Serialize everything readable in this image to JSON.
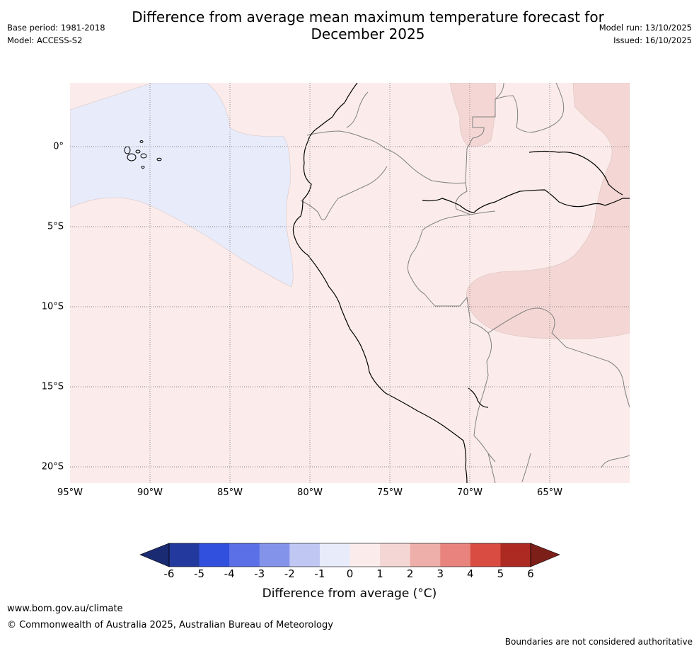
{
  "header": {
    "title_line1": "Difference from average mean maximum temperature forecast for",
    "title_line2": "December 2025",
    "base_period": "Base period: 1981-2018",
    "model": "Model: ACCESS-S2",
    "model_run": "Model run: 13/10/2025",
    "issued": "Issued: 16/10/2025"
  },
  "map": {
    "x_ticks": [
      "95°W",
      "90°W",
      "85°W",
      "80°W",
      "75°W",
      "70°W",
      "65°W"
    ],
    "y_ticks": [
      "0°",
      "5°S",
      "10°S",
      "15°S",
      "20°S"
    ],
    "lon_range": [
      -95,
      -60
    ],
    "lat_range": [
      -21,
      4
    ],
    "regions": [
      {
        "name": "cool-anomaly-pacific",
        "anomaly_range": [
          -1,
          0
        ],
        "color": "#e8ebfa"
      },
      {
        "name": "background",
        "anomaly_range": [
          0,
          1
        ],
        "color": "#fbeceb"
      },
      {
        "name": "warm-anomaly-amazon",
        "anomaly_range": [
          1,
          2
        ],
        "color": "#f4d7d4"
      }
    ]
  },
  "colorbar": {
    "labels": [
      "-6",
      "-5",
      "-4",
      "-3",
      "-2",
      "-1",
      "0",
      "1",
      "2",
      "3",
      "4",
      "5",
      "6"
    ],
    "colors": [
      "#23399d",
      "#3150de",
      "#5b70e6",
      "#8493ea",
      "#c0c7f3",
      "#e8ebfa",
      "#fbeceb",
      "#f4d7d4",
      "#eeaea9",
      "#e8847d",
      "#d94c41",
      "#ad2a22"
    ],
    "under_color": "#1b2b73",
    "over_color": "#7d1f19",
    "title": "Difference from average (°C)"
  },
  "footer": {
    "url": "www.bom.gov.au/climate",
    "copyright": "© Commonwealth of Australia 2025, Australian Bureau of Meteorology",
    "disclaimer": "Boundaries are not considered authoritative"
  }
}
